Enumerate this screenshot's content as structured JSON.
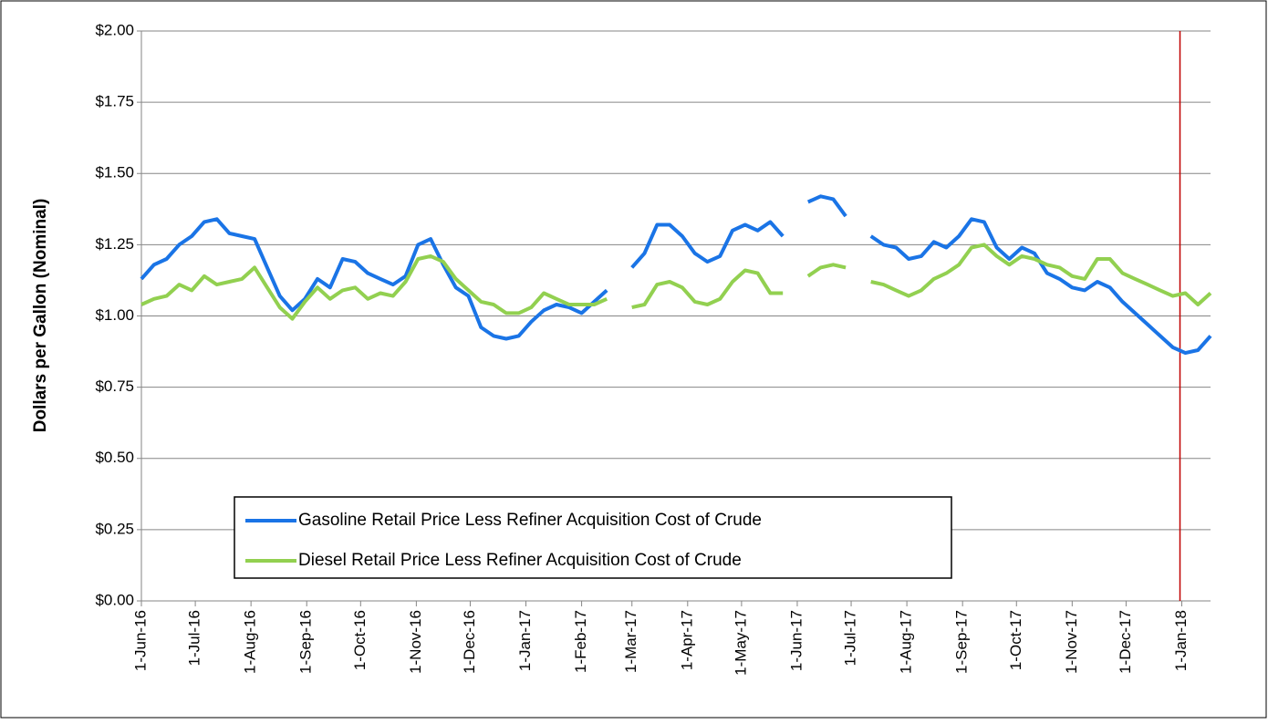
{
  "chart_data": {
    "type": "line",
    "ylabel": "Dollars per Gallon (Nominal)",
    "x": [
      "2016-06-01",
      "2016-06-08",
      "2016-06-15",
      "2016-06-22",
      "2016-06-29",
      "2016-07-06",
      "2016-07-13",
      "2016-07-20",
      "2016-07-27",
      "2016-08-03",
      "2016-08-10",
      "2016-08-17",
      "2016-08-24",
      "2016-08-31",
      "2016-09-07",
      "2016-09-14",
      "2016-09-21",
      "2016-09-28",
      "2016-10-05",
      "2016-10-12",
      "2016-10-19",
      "2016-10-26",
      "2016-11-02",
      "2016-11-09",
      "2016-11-16",
      "2016-11-23",
      "2016-11-30",
      "2016-12-07",
      "2016-12-14",
      "2016-12-21",
      "2016-12-28",
      "2017-01-04",
      "2017-01-11",
      "2017-01-18",
      "2017-01-25",
      "2017-02-01",
      "2017-02-08",
      "2017-02-15",
      "2017-02-22",
      "2017-03-01",
      "2017-03-08",
      "2017-03-15",
      "2017-03-22",
      "2017-03-29",
      "2017-04-05",
      "2017-04-12",
      "2017-04-19",
      "2017-04-26",
      "2017-05-03",
      "2017-05-10",
      "2017-05-17",
      "2017-05-24",
      "2017-05-31",
      "2017-06-07",
      "2017-06-14",
      "2017-06-21",
      "2017-06-28",
      "2017-07-05",
      "2017-07-12",
      "2017-07-19",
      "2017-07-26",
      "2017-08-02",
      "2017-08-09",
      "2017-08-16",
      "2017-08-23",
      "2017-08-30",
      "2017-09-06",
      "2017-09-13",
      "2017-09-20",
      "2017-09-27",
      "2017-10-04",
      "2017-10-11",
      "2017-10-18",
      "2017-10-25",
      "2017-11-01",
      "2017-11-08",
      "2017-11-15",
      "2017-11-22",
      "2017-11-29",
      "2017-12-06",
      "2017-12-13",
      "2017-12-20",
      "2017-12-27",
      "2018-01-03",
      "2018-01-10",
      "2018-01-17"
    ],
    "series": [
      {
        "name": "Gasoline Retail Price Less Refiner Acquisition Cost of Crude",
        "color": "#1a74e6",
        "values": [
          1.13,
          1.18,
          1.2,
          1.25,
          1.28,
          1.33,
          1.34,
          1.29,
          1.28,
          1.27,
          1.17,
          1.07,
          1.02,
          1.06,
          1.13,
          1.1,
          1.2,
          1.19,
          1.15,
          1.13,
          1.11,
          1.14,
          1.25,
          1.27,
          1.18,
          1.1,
          1.07,
          0.96,
          0.93,
          0.92,
          0.93,
          0.98,
          1.02,
          1.04,
          1.03,
          1.01,
          1.05,
          1.09,
          null,
          1.17,
          1.22,
          1.32,
          1.32,
          1.28,
          1.22,
          1.19,
          1.21,
          1.3,
          1.32,
          1.3,
          1.33,
          1.28,
          null,
          1.4,
          1.42,
          1.41,
          1.35,
          null,
          1.28,
          1.25,
          1.24,
          1.2,
          1.21,
          1.26,
          1.24,
          1.28,
          1.34,
          1.33,
          1.24,
          1.2,
          1.24,
          1.22,
          1.15,
          1.13,
          1.1,
          1.09,
          1.12,
          1.1,
          1.05,
          1.01,
          0.97,
          0.93,
          0.89,
          0.87,
          0.88,
          0.93
        ]
      },
      {
        "name": "Diesel Retail Price Less Refiner Acquisition Cost of Crude",
        "color": "#92d050",
        "values": [
          1.04,
          1.06,
          1.07,
          1.11,
          1.09,
          1.14,
          1.11,
          1.12,
          1.13,
          1.17,
          1.1,
          1.03,
          0.99,
          1.05,
          1.1,
          1.06,
          1.09,
          1.1,
          1.06,
          1.08,
          1.07,
          1.12,
          1.2,
          1.21,
          1.19,
          1.13,
          1.09,
          1.05,
          1.04,
          1.01,
          1.01,
          1.03,
          1.08,
          1.06,
          1.04,
          1.04,
          1.04,
          1.06,
          null,
          1.03,
          1.04,
          1.11,
          1.12,
          1.1,
          1.05,
          1.04,
          1.06,
          1.12,
          1.16,
          1.15,
          1.08,
          1.08,
          null,
          1.14,
          1.17,
          1.18,
          1.17,
          null,
          1.12,
          1.11,
          1.09,
          1.07,
          1.09,
          1.13,
          1.15,
          1.18,
          1.24,
          1.25,
          1.21,
          1.18,
          1.21,
          1.2,
          1.18,
          1.17,
          1.14,
          1.13,
          1.2,
          1.2,
          1.15,
          1.13,
          1.11,
          1.09,
          1.07,
          1.08,
          1.04,
          1.08
        ]
      }
    ],
    "xlim": [
      "2016-06-01",
      "2018-01-17"
    ],
    "xticks": [
      {
        "value": "2016-06-01",
        "label": "1-Jun-16"
      },
      {
        "value": "2016-07-01",
        "label": "1-Jul-16"
      },
      {
        "value": "2016-08-01",
        "label": "1-Aug-16"
      },
      {
        "value": "2016-09-01",
        "label": "1-Sep-16"
      },
      {
        "value": "2016-10-01",
        "label": "1-Oct-16"
      },
      {
        "value": "2016-11-01",
        "label": "1-Nov-16"
      },
      {
        "value": "2016-12-01",
        "label": "1-Dec-16"
      },
      {
        "value": "2017-01-01",
        "label": "1-Jan-17"
      },
      {
        "value": "2017-02-01",
        "label": "1-Feb-17"
      },
      {
        "value": "2017-03-01",
        "label": "1-Mar-17"
      },
      {
        "value": "2017-04-01",
        "label": "1-Apr-17"
      },
      {
        "value": "2017-05-01",
        "label": "1-May-17"
      },
      {
        "value": "2017-06-01",
        "label": "1-Jun-17"
      },
      {
        "value": "2017-07-01",
        "label": "1-Jul-17"
      },
      {
        "value": "2017-08-01",
        "label": "1-Aug-17"
      },
      {
        "value": "2017-09-01",
        "label": "1-Sep-17"
      },
      {
        "value": "2017-10-01",
        "label": "1-Oct-17"
      },
      {
        "value": "2017-11-01",
        "label": "1-Nov-17"
      },
      {
        "value": "2017-12-01",
        "label": "1-Dec-17"
      },
      {
        "value": "2018-01-01",
        "label": "1-Jan-18"
      }
    ],
    "ylim": [
      0,
      2
    ],
    "yticks": [
      {
        "value": 0,
        "label": "$0.00"
      },
      {
        "value": 0.25,
        "label": "$0.25"
      },
      {
        "value": 0.5,
        "label": "$0.50"
      },
      {
        "value": 0.75,
        "label": "$0.75"
      },
      {
        "value": 1,
        "label": "$1.00"
      },
      {
        "value": 1.25,
        "label": "$1.25"
      },
      {
        "value": 1.5,
        "label": "$1.50"
      },
      {
        "value": 1.75,
        "label": "$1.75"
      },
      {
        "value": 2,
        "label": "$2.00"
      }
    ],
    "grid": true,
    "legend": "lower left",
    "marker_line": {
      "x": "2017-12-31",
      "color": "#c00000"
    }
  }
}
